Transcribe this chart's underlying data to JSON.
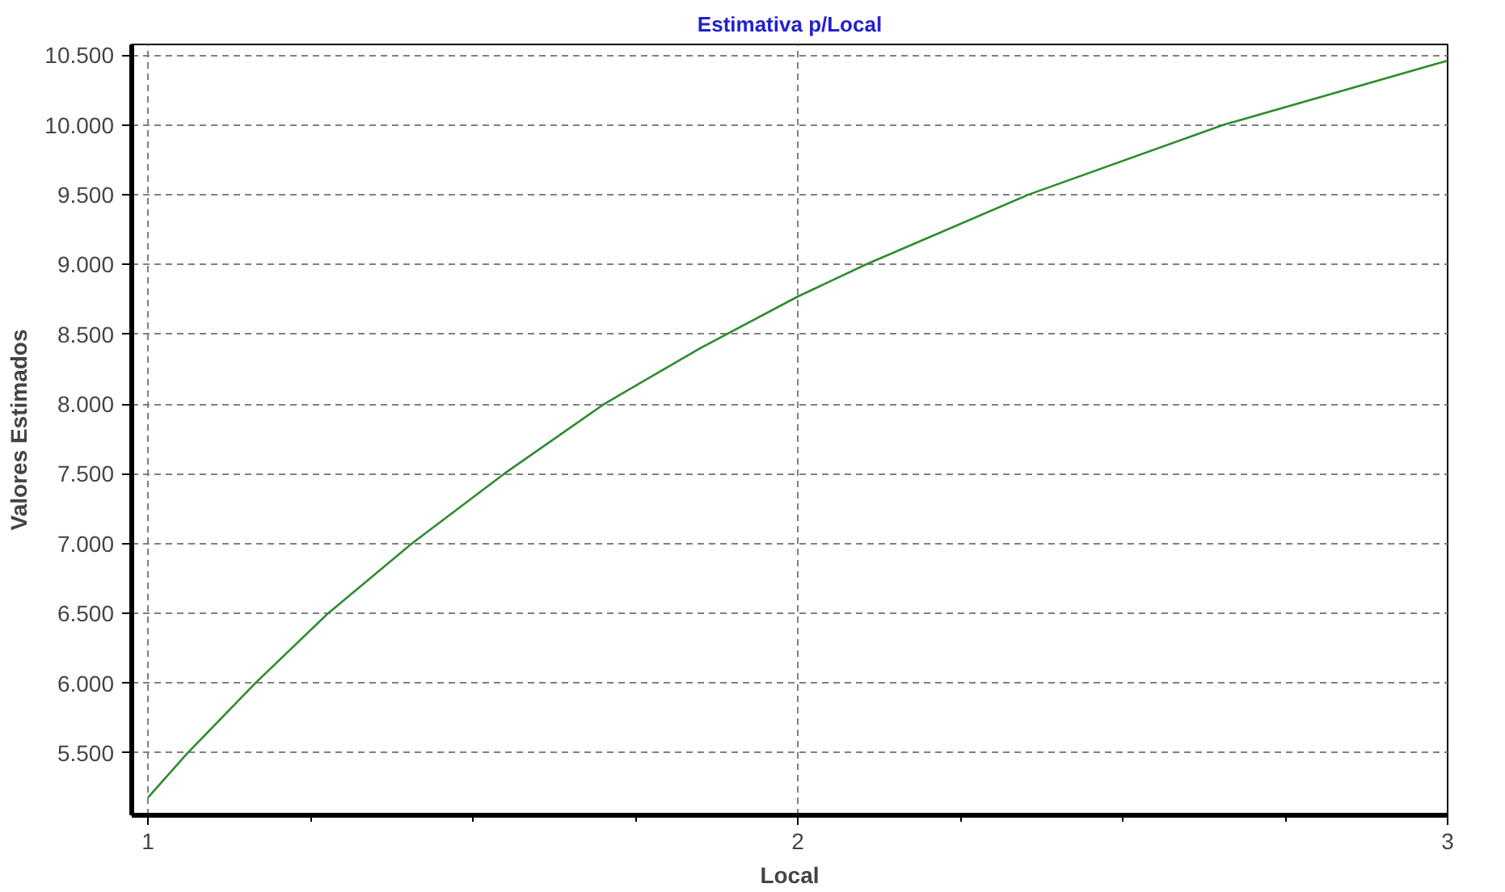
{
  "chart_data": {
    "type": "line",
    "title": "Estimativa p/Local",
    "xlabel": "Local",
    "ylabel": "Valores Estimados",
    "x": [
      1,
      1.061,
      1.165,
      1.277,
      1.406,
      1.548,
      1.702,
      1.85,
      2,
      2.105,
      2.355,
      2.655,
      3
    ],
    "series": [
      {
        "color": "#2e8b2e",
        "values": [
          5180,
          5500,
          6000,
          6500,
          7000,
          7500,
          8000,
          8400,
          8770,
          9000,
          9500,
          10000,
          10460
        ]
      }
    ],
    "xlim": [
      0.975,
      3
    ],
    "xticks": [
      1,
      2,
      3
    ],
    "ylim": [
      5054,
      10576
    ],
    "yticks": [
      {
        "value": 5500,
        "label": "5.500"
      },
      {
        "value": 6000,
        "label": "6.000"
      },
      {
        "value": 6500,
        "label": "6.500"
      },
      {
        "value": 7000,
        "label": "7.000"
      },
      {
        "value": 7500,
        "label": "7.500"
      },
      {
        "value": 8000,
        "label": "8.000"
      },
      {
        "value": 8500,
        "label": "8.500"
      },
      {
        "value": 9000,
        "label": "9.000"
      },
      {
        "value": 9500,
        "label": "9.500"
      },
      {
        "value": 10000,
        "label": "10.000"
      },
      {
        "value": 10500,
        "label": "10.500"
      }
    ],
    "grid": true,
    "marker": "none",
    "line_style": "solid"
  }
}
